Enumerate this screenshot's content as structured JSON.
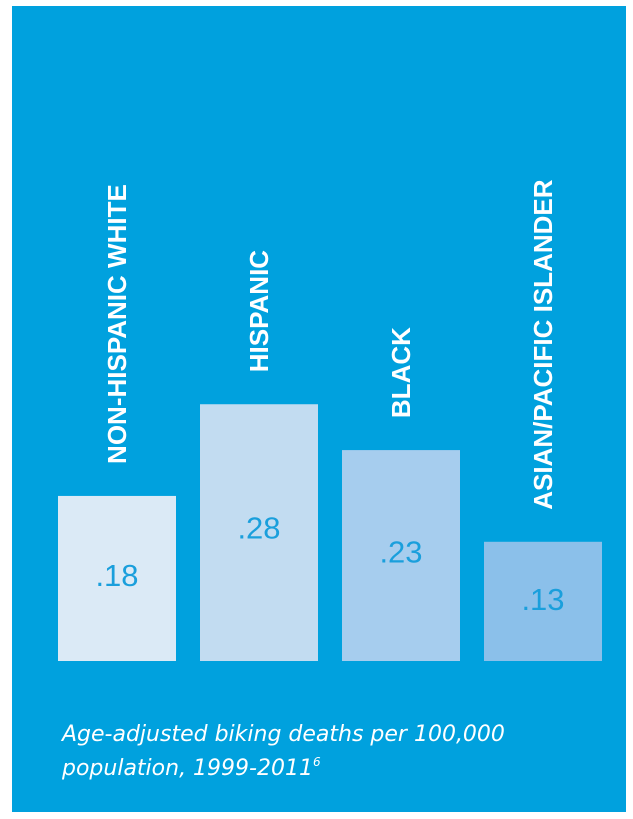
{
  "chart_data": {
    "type": "bar",
    "categories": [
      "NON-HISPANIC WHITE",
      "HISPANIC",
      "BLACK",
      "ASIAN/PACIFIC ISLANDER"
    ],
    "values": [
      0.18,
      0.28,
      0.23,
      0.13
    ],
    "value_labels": [
      ".18",
      ".28",
      ".23",
      ".13"
    ],
    "bar_colors": [
      "#dbeaf6",
      "#c2dcf1",
      "#a6cdee",
      "#8bc0ea"
    ],
    "background_color": "#00a1de",
    "value_label_color": "#1a9fdc",
    "caption": "Age-adjusted biking deaths per 100,000 population, 1999-2011",
    "caption_superscript": "6",
    "grid": false,
    "legend": "none"
  }
}
